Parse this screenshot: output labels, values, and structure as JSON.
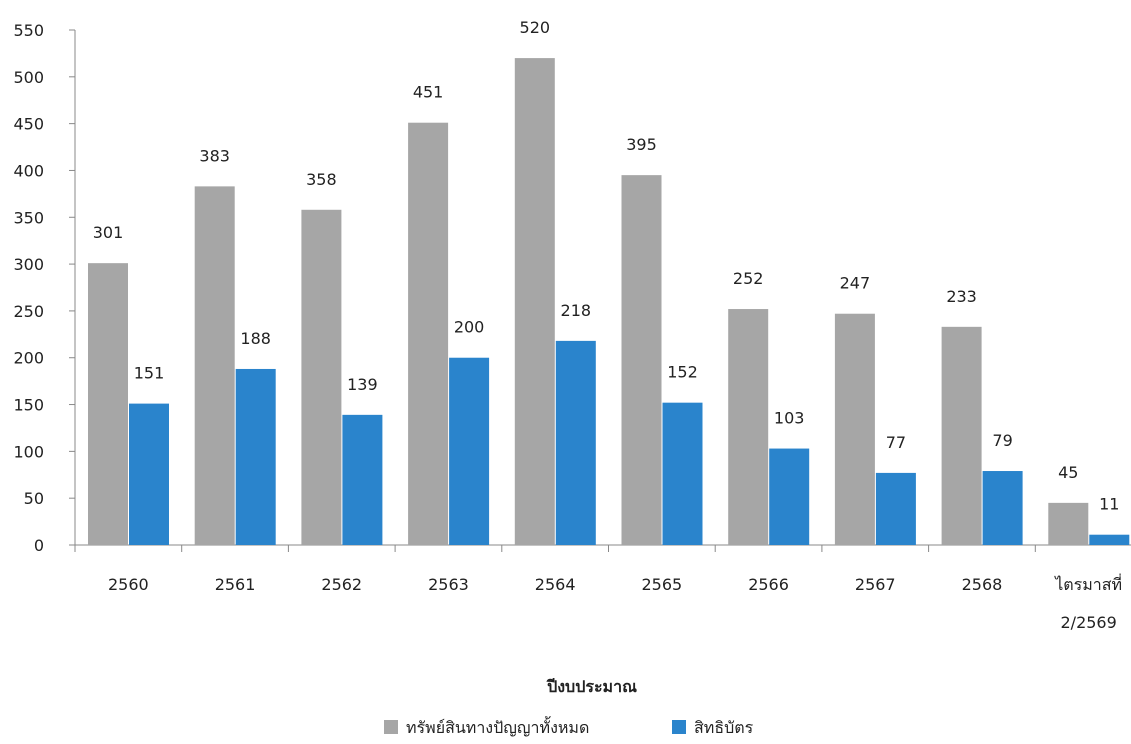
{
  "chart_data": {
    "type": "bar",
    "title": "",
    "xlabel": "ปีงบประมาณ",
    "ylabel": "",
    "ylim": [
      0,
      550
    ],
    "yticks": [
      0,
      50,
      100,
      150,
      200,
      250,
      300,
      350,
      400,
      450,
      500,
      550
    ],
    "categories": [
      [
        "2560"
      ],
      [
        "2561"
      ],
      [
        "2562"
      ],
      [
        "2563"
      ],
      [
        "2564"
      ],
      [
        "2565"
      ],
      [
        "2566"
      ],
      [
        "2567"
      ],
      [
        "2568"
      ],
      [
        "ไตรมาสที่",
        "2/2569"
      ]
    ],
    "series": [
      {
        "name": "ทรัพย์สินทางปัญญาทั้งหมด",
        "color": "#a6a6a6",
        "values": [
          301,
          383,
          358,
          451,
          520,
          395,
          252,
          247,
          233,
          45
        ]
      },
      {
        "name": "สิทธิบัตร",
        "color": "#2a84cc",
        "values": [
          151,
          188,
          139,
          200,
          218,
          152,
          103,
          77,
          79,
          11
        ]
      }
    ],
    "legend_position": "bottom-center",
    "grid": false
  }
}
